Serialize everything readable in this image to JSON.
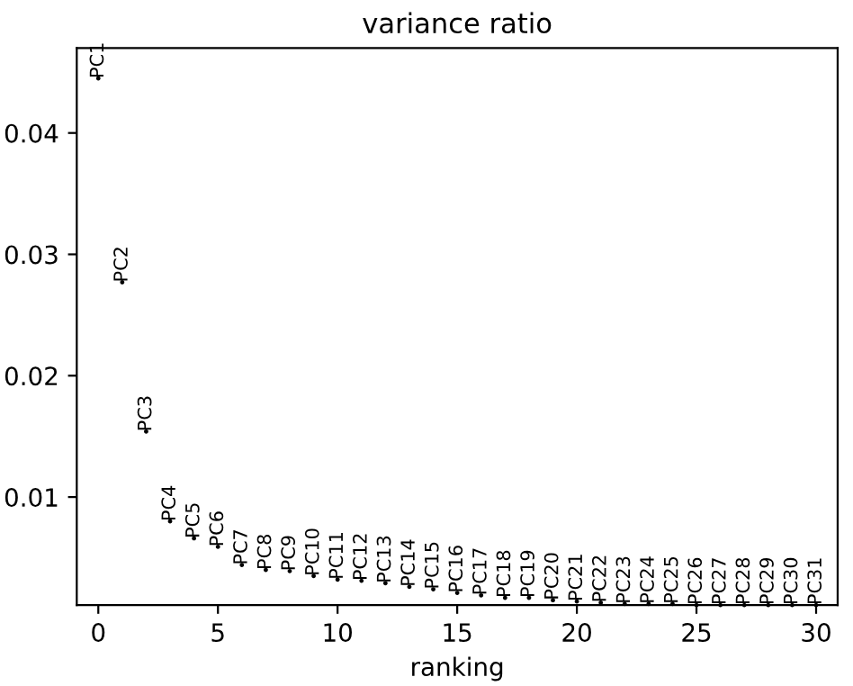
{
  "chart_data": {
    "type": "scatter",
    "title": "variance ratio",
    "xlabel": "ranking",
    "x": [
      0,
      1,
      2,
      3,
      4,
      5,
      6,
      7,
      8,
      9,
      10,
      11,
      12,
      13,
      14,
      15,
      16,
      17,
      18,
      19,
      20,
      21,
      22,
      23,
      24,
      25,
      26,
      27,
      28,
      29,
      30
    ],
    "values": [
      0.0445,
      0.0277,
      0.0154,
      0.008,
      0.0066,
      0.0059,
      0.0044,
      0.004,
      0.0039,
      0.0035,
      0.0032,
      0.0031,
      0.0029,
      0.0026,
      0.0024,
      0.0021,
      0.0019,
      0.0017,
      0.0017,
      0.0015,
      0.0014,
      0.0013,
      0.0012,
      0.0012,
      0.0012,
      0.0011,
      0.0011,
      0.0011,
      0.0011,
      0.0011,
      0.0011
    ],
    "value_labels": [
      "PC1",
      "PC2",
      "PC3",
      "PC4",
      "PC5",
      "PC6",
      "PC7",
      "PC8",
      "PC9",
      "PC10",
      "PC11",
      "PC12",
      "PC13",
      "PC14",
      "PC15",
      "PC16",
      "PC17",
      "PC18",
      "PC19",
      "PC20",
      "PC21",
      "PC22",
      "PC23",
      "PC24",
      "PC25",
      "PC26",
      "PC27",
      "PC28",
      "PC29",
      "PC30",
      "PC31"
    ],
    "color": "#000000",
    "marker": "circle",
    "grid": false,
    "legend": false,
    "xlim": [
      -0.9,
      30.9
    ],
    "ylim": [
      0.0011,
      0.047
    ],
    "xticks": [
      0,
      5,
      10,
      15,
      20,
      25,
      30
    ],
    "yticks": [
      {
        "value": 0.01,
        "label": "0.01"
      },
      {
        "value": 0.02,
        "label": "0.02"
      },
      {
        "value": 0.03,
        "label": "0.03"
      },
      {
        "value": 0.04,
        "label": "0.04"
      }
    ]
  }
}
